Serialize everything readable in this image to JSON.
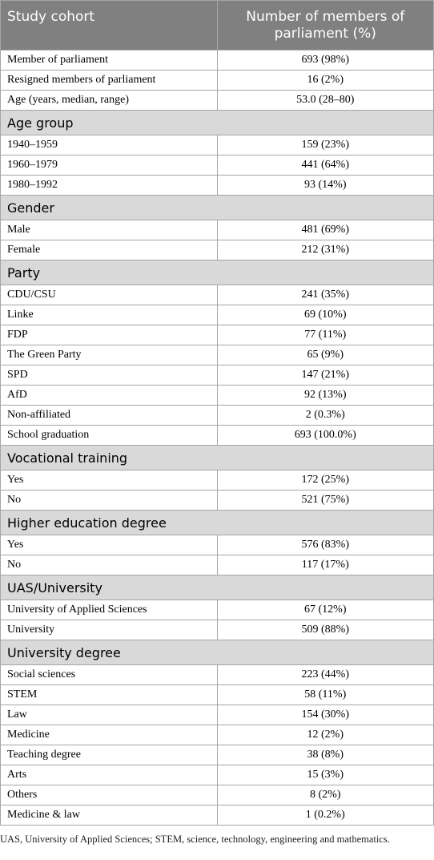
{
  "table": {
    "header": [
      "Study cohort",
      "Number of members of parliament (%)"
    ],
    "rows": [
      [
        "Member of parliament",
        "693 (98%)"
      ],
      [
        "Resigned members of parliament",
        "16 (2%)"
      ],
      [
        "Age (years, median, range)",
        "53.0 (28–80)"
      ],
      [
        "Age group"
      ],
      [
        "1940–1959",
        "159 (23%)"
      ],
      [
        "1960–1979",
        "441 (64%)"
      ],
      [
        "1980–1992",
        "93 (14%)"
      ],
      [
        "Gender"
      ],
      [
        "Male",
        "481 (69%)"
      ],
      [
        "Female",
        "212 (31%)"
      ],
      [
        "Party"
      ],
      [
        "CDU/CSU",
        "241 (35%)"
      ],
      [
        "Linke",
        "69 (10%)"
      ],
      [
        "FDP",
        "77 (11%)"
      ],
      [
        "The Green Party",
        "65 (9%)"
      ],
      [
        "SPD",
        "147 (21%)"
      ],
      [
        "AfD",
        "92 (13%)"
      ],
      [
        "Non-affiliated",
        "2 (0.3%)"
      ],
      [
        "School graduation",
        "693 (100.0%)"
      ],
      [
        "Vocational training"
      ],
      [
        "Yes",
        "172 (25%)"
      ],
      [
        "No",
        "521 (75%)"
      ],
      [
        "Higher education degree"
      ],
      [
        "Yes",
        "576 (83%)"
      ],
      [
        "No",
        "117 (17%)"
      ],
      [
        "UAS/University"
      ],
      [
        "University of Applied Sciences",
        "67 (12%)"
      ],
      [
        "University",
        "509 (88%)"
      ],
      [
        "University degree"
      ],
      [
        "Social sciences",
        "223 (44%)"
      ],
      [
        "STEM",
        "58 (11%)"
      ],
      [
        "Law",
        "154 (30%)"
      ],
      [
        "Medicine",
        "12 (2%)"
      ],
      [
        "Teaching degree",
        "38 (8%)"
      ],
      [
        "Arts",
        "15 (3%)"
      ],
      [
        "Others",
        "8 (2%)"
      ],
      [
        "Medicine & law",
        "1 (0.2%)"
      ]
    ],
    "footnote": "UAS, University of Applied Sciences; STEM, science, technology, engineering and mathematics."
  }
}
